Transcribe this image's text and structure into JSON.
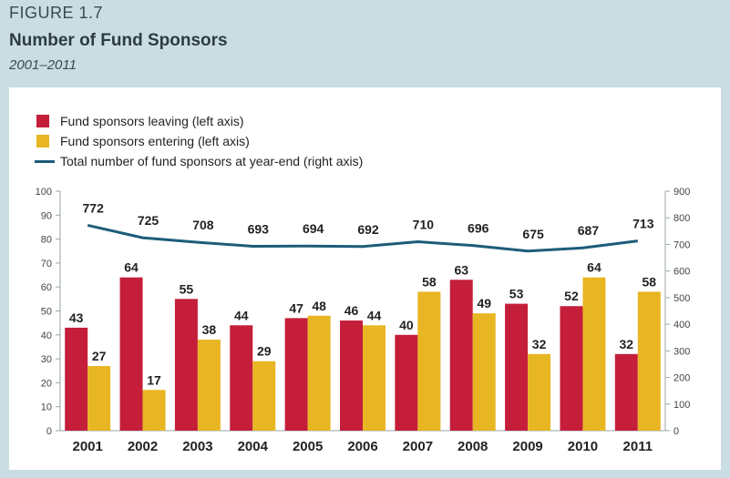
{
  "figure": {
    "label": "FIGURE 1.7",
    "title": "Number of Fund Sponsors",
    "subtitle": "2001–2011"
  },
  "legend": {
    "leaving": "Fund sponsors leaving (left axis)",
    "entering": "Fund sponsors entering (left axis)",
    "total": "Total number of fund sponsors at year-end (right axis)"
  },
  "colors": {
    "leaving": "#c41e3a",
    "entering": "#e8b623",
    "total": "#1d5c7a",
    "background": "#c9dde3"
  },
  "chart_data": {
    "type": "bar",
    "categories": [
      "2001",
      "2002",
      "2003",
      "2004",
      "2005",
      "2006",
      "2007",
      "2008",
      "2009",
      "2010",
      "2011"
    ],
    "series": [
      {
        "name": "Fund sponsors leaving (left axis)",
        "axis": "left",
        "values": [
          43,
          64,
          55,
          44,
          47,
          46,
          40,
          63,
          53,
          52,
          32
        ]
      },
      {
        "name": "Fund sponsors entering (left axis)",
        "axis": "left",
        "values": [
          27,
          17,
          38,
          29,
          48,
          44,
          58,
          49,
          32,
          64,
          58
        ]
      },
      {
        "name": "Total number of fund sponsors at year-end (right axis)",
        "axis": "right",
        "type": "line",
        "values": [
          772,
          725,
          708,
          693,
          694,
          692,
          710,
          696,
          675,
          687,
          713
        ]
      }
    ],
    "left_axis": {
      "ylim": [
        0,
        100
      ],
      "ticks": [
        0,
        10,
        20,
        30,
        40,
        50,
        60,
        70,
        80,
        90,
        100
      ]
    },
    "right_axis": {
      "ylim": [
        0,
        900
      ],
      "ticks": [
        0,
        100,
        200,
        300,
        400,
        500,
        600,
        700,
        800,
        900
      ]
    },
    "legend_position": "top-left",
    "grid": false
  }
}
